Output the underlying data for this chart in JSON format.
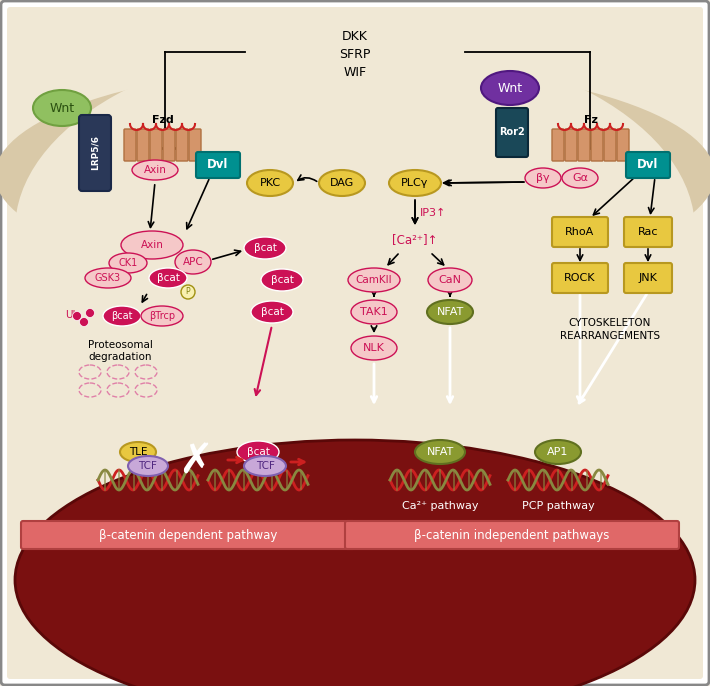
{
  "bg_outer": "#f0ebe0",
  "bg_white": "#ffffff",
  "bg_cell_tan": "#d9c9a8",
  "bg_cell_inner": "#f0e8d5",
  "bg_nucleus": "#7a1010",
  "wnt_left_color": "#90c060",
  "wnt_left_text": "#2a5010",
  "lrp_color": "#2a3858",
  "fzd_helix_color": "#d4956a",
  "fzd_helix_edge": "#b07040",
  "dvl_color": "#009090",
  "dvl_edge": "#007070",
  "axin_color": "#f5c8c8",
  "axin_text": "#cc1155",
  "axin_edge": "#cc1155",
  "pink_color": "#cc1155",
  "pink_text": "#ffffff",
  "pink_light": "#f5c8c8",
  "pink_light_text": "#cc1155",
  "yellow_color": "#e8c840",
  "yellow_edge": "#b89820",
  "yellow_text": "#000000",
  "olive_color": "#8a9a30",
  "olive_edge": "#607020",
  "olive_text": "#ffffff",
  "wnt_right_color": "#7030a0",
  "wnt_right_edge": "#501880",
  "ror2_color": "#1a4858",
  "ror2_edge": "#0a2838",
  "purple_light": "#c8a8d8",
  "purple_text": "#502880",
  "red_dark": "#cc2020",
  "ca2_text": "Ca²⁺ pathway",
  "pcp_text": "PCP pathway",
  "pathway1_text": "β-catenin dependent pathway",
  "pathway2_text": "β-catenin independent pathways",
  "pathway_box_color": "#e06868",
  "pathway_box_edge": "#b04040"
}
